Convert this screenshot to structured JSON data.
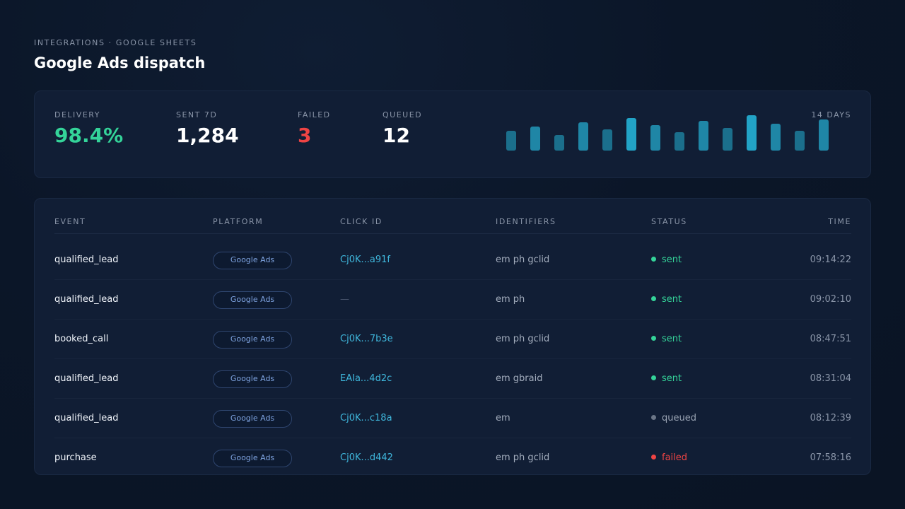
{
  "header": {
    "breadcrumb": "INTEGRATIONS · GOOGLE SHEETS",
    "title": "Google Ads dispatch"
  },
  "stats": [
    {
      "label": "DELIVERY",
      "value": "98.4%",
      "tone": "green"
    },
    {
      "label": "SENT 7D",
      "value": "1,284",
      "tone": "white"
    },
    {
      "label": "FAILED",
      "value": "3",
      "tone": "red"
    },
    {
      "label": "QUEUED",
      "value": "12",
      "tone": "white"
    }
  ],
  "sparkline": {
    "label": "14 DAYS",
    "values": [
      28,
      34,
      22,
      40,
      30,
      46,
      36,
      26,
      42,
      32,
      50,
      38,
      28,
      44
    ],
    "colors": {
      "dim": "#1b6f8c",
      "mid": "#1f86a6",
      "bright": "#22a3c6"
    }
  },
  "table": {
    "columns": [
      "EVENT",
      "PLATFORM",
      "CLICK ID",
      "IDENTIFIERS",
      "STATUS",
      "TIME"
    ],
    "rows": [
      {
        "event": "qualified_lead",
        "platform": "Google Ads",
        "click_id": "Cj0K...a91f",
        "identifiers": "em ph gclid",
        "status": "sent",
        "time": "09:14:22"
      },
      {
        "event": "qualified_lead",
        "platform": "Google Ads",
        "click_id": "—",
        "identifiers": "em ph",
        "status": "sent",
        "time": "09:02:10"
      },
      {
        "event": "booked_call",
        "platform": "Google Ads",
        "click_id": "Cj0K...7b3e",
        "identifiers": "em ph gclid",
        "status": "sent",
        "time": "08:47:51"
      },
      {
        "event": "qualified_lead",
        "platform": "Google Ads",
        "click_id": "EAIa...4d2c",
        "identifiers": "em gbraid",
        "status": "sent",
        "time": "08:31:04"
      },
      {
        "event": "qualified_lead",
        "platform": "Google Ads",
        "click_id": "Cj0K...c18a",
        "identifiers": "em",
        "status": "queued",
        "time": "08:12:39"
      },
      {
        "event": "purchase",
        "platform": "Google Ads",
        "click_id": "Cj0K...d442",
        "identifiers": "em ph gclid",
        "status": "failed",
        "time": "07:58:16"
      }
    ]
  },
  "status_colors": {
    "sent": "#34d399",
    "queued": "#6b7687",
    "failed": "#ef4444"
  },
  "status_text_colors": {
    "sent": "#34d399",
    "queued": "#9aa4b4",
    "failed": "#ef4444"
  }
}
